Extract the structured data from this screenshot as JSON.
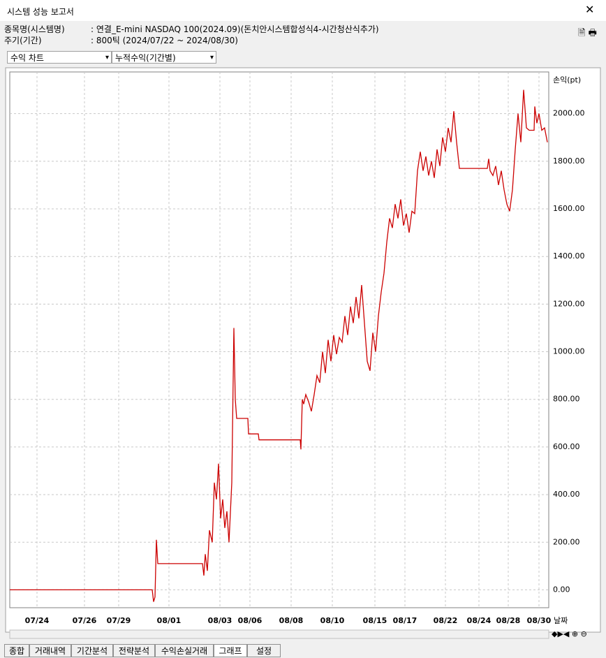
{
  "header": {
    "title": "시스템 성능 보고서"
  },
  "info": [
    {
      "label": "종목명(시스템명)",
      "value": ":  연결_E-mini NASDAQ 100(2024.09)(돈치안시스템합성식4-시간청산식추가)"
    },
    {
      "label": "주기(기간)",
      "value": ":  800틱 (2024/07/22 ~ 2024/08/30)"
    }
  ],
  "dropdowns": [
    "수익 차트",
    "누적수익(기간별)"
  ],
  "tabs": [
    "종합",
    "거래내역",
    "기간분석",
    "전략분석",
    "수익손실거래",
    "그래프",
    "설정"
  ],
  "chart_data": {
    "type": "line",
    "y_label": "손익(pt)",
    "x_label": "날짜",
    "color": "#cc0000",
    "grid": true,
    "xlim": [
      0,
      772
    ],
    "ylim": [
      -75,
      2175
    ],
    "xticks": [
      {
        "value": 39,
        "label": "07/24"
      },
      {
        "value": 107,
        "label": "07/26"
      },
      {
        "value": 156,
        "label": "07/29"
      },
      {
        "value": 228,
        "label": "08/01"
      },
      {
        "value": 301,
        "label": "08/03"
      },
      {
        "value": 344,
        "label": "08/06"
      },
      {
        "value": 403,
        "label": "08/08"
      },
      {
        "value": 462,
        "label": "08/10"
      },
      {
        "value": 523,
        "label": "08/15"
      },
      {
        "value": 566,
        "label": "08/17"
      },
      {
        "value": 624,
        "label": "08/22"
      },
      {
        "value": 672,
        "label": "08/24"
      },
      {
        "value": 714,
        "label": "08/28"
      },
      {
        "value": 758,
        "label": "08/30"
      }
    ],
    "yticks": [
      {
        "value": 0,
        "label": "0.00"
      },
      {
        "value": 200,
        "label": "200.00"
      },
      {
        "value": 400,
        "label": "400.00"
      },
      {
        "value": 600,
        "label": "600.00"
      },
      {
        "value": 800,
        "label": "800.00"
      },
      {
        "value": 1000,
        "label": "1000.00"
      },
      {
        "value": 1200,
        "label": "1200.00"
      },
      {
        "value": 1400,
        "label": "1400.00"
      },
      {
        "value": 1600,
        "label": "1600.00"
      },
      {
        "value": 1800,
        "label": "1800.00"
      },
      {
        "value": 2000,
        "label": "2000.00"
      }
    ],
    "x": [
      0,
      204,
      206,
      208,
      210,
      212,
      276,
      278,
      280,
      283,
      286,
      290,
      293,
      296,
      299,
      302,
      305,
      308,
      311,
      314,
      318,
      321,
      323,
      325,
      341,
      342,
      356,
      357,
      416,
      417,
      419,
      421,
      424,
      428,
      432,
      436,
      440,
      444,
      448,
      452,
      456,
      460,
      464,
      468,
      472,
      476,
      480,
      484,
      488,
      492,
      496,
      500,
      504,
      508,
      512,
      516,
      520,
      524,
      528,
      532,
      536,
      540,
      544,
      548,
      552,
      556,
      560,
      564,
      568,
      572,
      576,
      580,
      584,
      588,
      592,
      596,
      600,
      604,
      608,
      612,
      616,
      620,
      624,
      628,
      632,
      636,
      640,
      644,
      684,
      686,
      688,
      692,
      696,
      700,
      704,
      708,
      712,
      716,
      720,
      724,
      728,
      732,
      736,
      740,
      744,
      751,
      752,
      755,
      758,
      762,
      766,
      770
    ],
    "values": [
      0,
      0,
      -50,
      -30,
      210,
      110,
      110,
      60,
      150,
      80,
      250,
      200,
      450,
      380,
      530,
      300,
      380,
      260,
      330,
      200,
      450,
      1100,
      800,
      720,
      720,
      655,
      655,
      630,
      630,
      590,
      800,
      780,
      820,
      790,
      750,
      820,
      900,
      870,
      1000,
      910,
      1050,
      960,
      1070,
      990,
      1060,
      1040,
      1150,
      1070,
      1190,
      1120,
      1230,
      1140,
      1280,
      1120,
      960,
      920,
      1080,
      1000,
      1150,
      1250,
      1330,
      1460,
      1560,
      1520,
      1620,
      1560,
      1640,
      1530,
      1580,
      1500,
      1590,
      1580,
      1760,
      1840,
      1760,
      1820,
      1740,
      1800,
      1730,
      1850,
      1780,
      1900,
      1840,
      1940,
      1880,
      2010,
      1880,
      1770,
      1770,
      1810,
      1760,
      1740,
      1780,
      1700,
      1760,
      1680,
      1620,
      1590,
      1680,
      1850,
      2000,
      1880,
      2100,
      1940,
      1930,
      1930,
      2030,
      1960,
      2000,
      1930,
      1940,
      1880
    ]
  }
}
